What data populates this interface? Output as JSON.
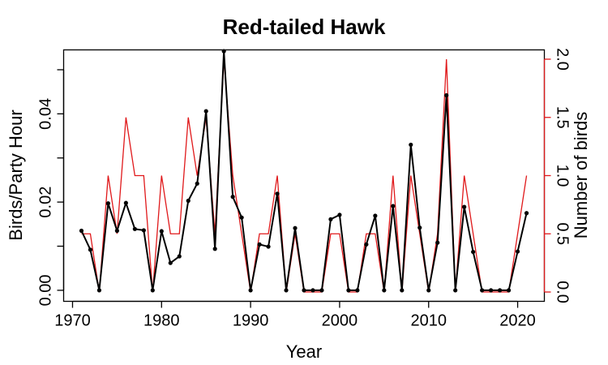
{
  "chart_data": {
    "type": "line",
    "title": "Red-tailed Hawk",
    "xlabel": "Year",
    "ylabel": "Birds/Party Hour",
    "ylabel_right": "Number of birds",
    "xlim": [
      1969.0,
      2023.0
    ],
    "ylim_left": [
      -0.0025,
      0.0545
    ],
    "ylim_right": [
      -0.08,
      2.08
    ],
    "x_ticks": [
      1970,
      1980,
      1990,
      2000,
      2010,
      2020
    ],
    "y_ticks_left": [
      "0.00",
      "0.02",
      "0.04"
    ],
    "y_ticks_left_values": [
      0.0,
      0.02,
      0.04
    ],
    "y_ticks_left_minor": [
      0.01,
      0.03,
      0.05
    ],
    "y_ticks_right": [
      "0.0",
      "0.5",
      "1.0",
      "1.5",
      "2.0"
    ],
    "y_ticks_right_values": [
      0.0,
      0.5,
      1.0,
      1.5,
      2.0
    ],
    "grid": false,
    "legend": "none",
    "colors": {
      "left_series": "#000000",
      "right_series": "#e0191b",
      "right_axis": "#e0191b"
    },
    "series": [
      {
        "axis": "left",
        "x": [
          1971,
          1972,
          1973,
          1974,
          1975,
          1976,
          1977,
          1978,
          1979,
          1980,
          1981,
          1982,
          1983,
          1984,
          1985,
          1986,
          1987,
          1988,
          1989,
          1990,
          1991,
          1992,
          1993,
          1994,
          1995,
          1996,
          1997,
          1998,
          1999,
          2000,
          2001,
          2002,
          2003,
          2004,
          2005,
          2006,
          2007,
          2008,
          2009,
          2010,
          2011,
          2012,
          2013,
          2014,
          2015,
          2016,
          2017,
          2018,
          2019,
          2020,
          2021
        ],
        "values": [
          0.0135,
          0.0092,
          0.0,
          0.0197,
          0.0135,
          0.0198,
          0.0139,
          0.0136,
          0.0,
          0.0134,
          0.0062,
          0.0077,
          0.0203,
          0.0242,
          0.0406,
          0.0094,
          0.0542,
          0.0212,
          0.0165,
          0.0,
          0.0104,
          0.0099,
          0.0219,
          0.0,
          0.0141,
          0.0,
          0.0,
          0.0,
          0.0161,
          0.0171,
          0.0,
          0.0,
          0.0104,
          0.0169,
          0.0,
          0.0191,
          0.0,
          0.033,
          0.0142,
          0.0,
          0.0108,
          0.0442,
          0.0,
          0.0189,
          0.0087,
          0.0,
          0.0,
          0.0,
          0.0,
          0.0088,
          0.0175
        ]
      },
      {
        "axis": "right",
        "x": [
          1971,
          1972,
          1973,
          1974,
          1975,
          1976,
          1977,
          1978,
          1979,
          1980,
          1981,
          1982,
          1983,
          1984,
          1985,
          1986,
          1987,
          1988,
          1989,
          1990,
          1991,
          1992,
          1993,
          1994,
          1995,
          1996,
          1997,
          1998,
          1999,
          2000,
          2001,
          2002,
          2003,
          2004,
          2005,
          2006,
          2007,
          2008,
          2009,
          2010,
          2011,
          2012,
          2013,
          2014,
          2015,
          2016,
          2017,
          2018,
          2019,
          2020,
          2021
        ],
        "values": [
          0.5,
          0.5,
          0.0,
          1.0,
          0.5,
          1.5,
          1.0,
          1.0,
          0.0,
          1.0,
          0.5,
          0.5,
          1.5,
          1.0,
          1.5,
          0.5,
          2.0,
          1.0,
          0.5,
          0.0,
          0.5,
          0.5,
          1.0,
          0.0,
          0.5,
          0.0,
          0.0,
          0.0,
          0.5,
          0.5,
          0.0,
          0.0,
          0.5,
          0.5,
          0.0,
          1.0,
          0.0,
          1.0,
          0.5,
          0.0,
          0.5,
          2.0,
          0.0,
          1.0,
          0.5,
          0.0,
          0.0,
          0.0,
          0.0,
          0.5,
          1.0
        ]
      }
    ]
  }
}
